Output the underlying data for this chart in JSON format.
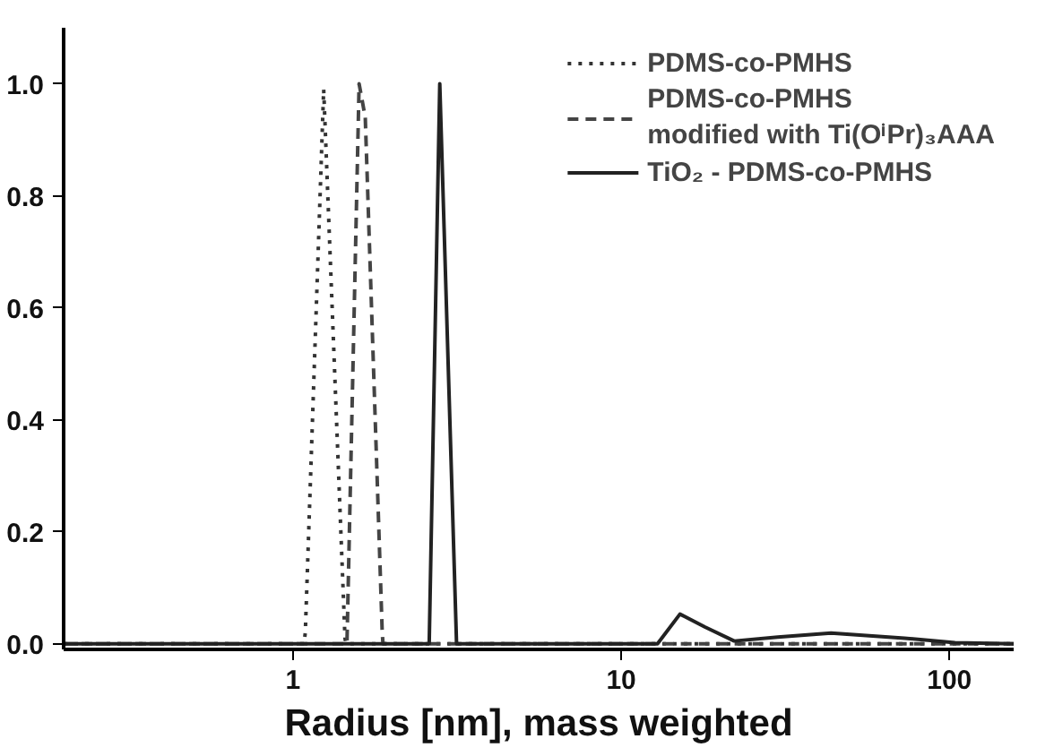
{
  "chart_data": {
    "type": "line",
    "xlabel": "Radius [nm], mass weighted",
    "log": "x",
    "grid": false,
    "legend": "top right",
    "xlim": [
      0.2,
      157
    ],
    "ylim": [
      -0.01,
      1.1
    ],
    "xticks": [
      1,
      10,
      100
    ],
    "yticks": [
      {
        "value": 0,
        "label": "0.0"
      },
      0.2,
      0.4,
      0.6,
      0.8,
      {
        "value": 1,
        "label": "1.0"
      }
    ],
    "series": [
      {
        "name": "PDMS-co-PMHS",
        "color": "#333333",
        "line_style": "dotted",
        "x": [
          0.2,
          1.08,
          1.09,
          1.24,
          1.44,
          1.45,
          157
        ],
        "values": [
          0,
          0,
          0.02,
          0.99,
          0.01,
          0,
          0
        ]
      },
      {
        "name": "PDMS-co-PMHS\nmodified with Ti(OⁱPr)₃AAA",
        "color": "#444444",
        "line_style": "dashed",
        "x": [
          0.2,
          1.46,
          1.59,
          1.66,
          1.87,
          1.88,
          157
        ],
        "values": [
          0,
          0,
          1.0,
          0.94,
          0.02,
          0,
          0
        ]
      },
      {
        "name": "TiO₂ - PDMS-co-PMHS",
        "color": "#222222",
        "line_style": "solid",
        "x": [
          0.2,
          2.6,
          2.8,
          3.15,
          12.9,
          15.1,
          18,
          22.1,
          30,
          43.6,
          73,
          104,
          157
        ],
        "values": [
          0,
          0,
          1.0,
          0,
          0,
          0.053,
          0.03,
          0.005,
          0.012,
          0.019,
          0.01,
          0.002,
          0
        ]
      }
    ]
  }
}
